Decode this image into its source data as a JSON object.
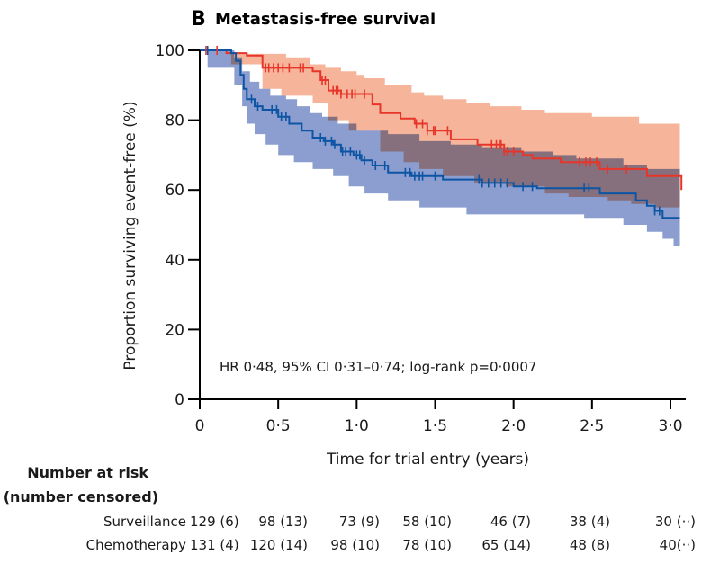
{
  "chart_data": {
    "type": "line",
    "panel_letter": "B",
    "title": "Metastasis-free survival",
    "xlabel": "Time for trial entry (years)",
    "ylabel": "Proportion surviving event-free (%)",
    "xlim": [
      0,
      3.0
    ],
    "ylim": [
      0,
      100
    ],
    "xticks": [
      0,
      0.5,
      1.0,
      1.5,
      2.0,
      2.5,
      3.0
    ],
    "xtick_labels": [
      "0",
      "0·5",
      "1·0",
      "1·5",
      "2·0",
      "2·5",
      "3·0"
    ],
    "yticks": [
      0,
      20,
      40,
      60,
      80,
      100
    ],
    "ytick_labels": [
      "0",
      "20",
      "40",
      "60",
      "80",
      "100"
    ],
    "grid": false,
    "annotation": "HR 0·48, 95% CI 0·31–0·74; log-rank p=0·0007",
    "series": [
      {
        "name": "Surveillance",
        "color": "#e8352a",
        "band_color": "#f4a07e",
        "steps": [
          [
            0,
            100
          ],
          [
            0.17,
            99.2
          ],
          [
            0.3,
            98.5
          ],
          [
            0.4,
            95
          ],
          [
            0.72,
            94
          ],
          [
            0.77,
            91.5
          ],
          [
            0.82,
            88.5
          ],
          [
            0.9,
            87.5
          ],
          [
            1.1,
            84.5
          ],
          [
            1.15,
            82
          ],
          [
            1.28,
            80.5
          ],
          [
            1.37,
            79
          ],
          [
            1.45,
            77
          ],
          [
            1.6,
            74.5
          ],
          [
            1.77,
            73
          ],
          [
            1.94,
            71
          ],
          [
            2.06,
            70
          ],
          [
            2.12,
            69
          ],
          [
            2.3,
            68
          ],
          [
            2.55,
            66
          ],
          [
            2.85,
            64
          ],
          [
            3.07,
            60
          ]
        ],
        "ci_upper": [
          [
            0,
            100
          ],
          [
            0.2,
            99
          ],
          [
            0.4,
            99
          ],
          [
            0.55,
            98
          ],
          [
            0.7,
            96
          ],
          [
            0.8,
            95
          ],
          [
            0.9,
            94
          ],
          [
            1.0,
            93
          ],
          [
            1.05,
            92
          ],
          [
            1.18,
            90
          ],
          [
            1.35,
            88
          ],
          [
            1.43,
            87
          ],
          [
            1.55,
            86
          ],
          [
            1.7,
            85
          ],
          [
            1.85,
            84
          ],
          [
            2.05,
            83
          ],
          [
            2.2,
            82
          ],
          [
            2.5,
            81
          ],
          [
            2.8,
            79
          ],
          [
            3.06,
            79
          ]
        ],
        "ci_lower": [
          [
            0,
            100
          ],
          [
            0.2,
            96
          ],
          [
            0.4,
            89
          ],
          [
            0.52,
            87
          ],
          [
            0.72,
            85
          ],
          [
            0.82,
            80
          ],
          [
            0.95,
            77
          ],
          [
            1.15,
            71
          ],
          [
            1.3,
            68
          ],
          [
            1.4,
            66
          ],
          [
            1.55,
            64
          ],
          [
            1.75,
            62
          ],
          [
            1.95,
            61
          ],
          [
            2.2,
            59
          ],
          [
            2.35,
            58
          ],
          [
            2.6,
            57
          ],
          [
            2.75,
            56
          ],
          [
            2.9,
            55
          ],
          [
            3.06,
            54
          ]
        ],
        "censor_times": [
          0.04,
          0.11,
          0.42,
          0.44,
          0.47,
          0.5,
          0.53,
          0.57,
          0.64,
          0.66,
          0.78,
          0.8,
          0.85,
          0.87,
          0.88,
          0.9,
          0.94,
          0.97,
          0.99,
          1.05,
          1.38,
          1.42,
          1.45,
          1.49,
          1.5,
          1.58,
          1.86,
          1.89,
          1.91,
          1.92,
          1.94,
          1.96,
          2.0,
          2.42,
          2.46,
          2.49,
          2.53,
          2.6,
          2.72
        ]
      },
      {
        "name": "Chemotherapy",
        "color": "#0d55a4",
        "band_color": "#8b9ecf",
        "steps": [
          [
            0,
            100
          ],
          [
            0.2,
            99.2
          ],
          [
            0.23,
            97
          ],
          [
            0.26,
            93
          ],
          [
            0.28,
            89
          ],
          [
            0.3,
            86
          ],
          [
            0.35,
            84
          ],
          [
            0.4,
            83
          ],
          [
            0.5,
            81
          ],
          [
            0.57,
            79
          ],
          [
            0.65,
            77
          ],
          [
            0.72,
            75
          ],
          [
            0.79,
            74
          ],
          [
            0.85,
            73
          ],
          [
            0.9,
            71
          ],
          [
            0.98,
            70
          ],
          [
            1.03,
            68.5
          ],
          [
            1.1,
            67
          ],
          [
            1.2,
            65
          ],
          [
            1.35,
            64
          ],
          [
            1.55,
            63
          ],
          [
            1.8,
            62
          ],
          [
            2.0,
            61
          ],
          [
            2.15,
            60.5
          ],
          [
            2.55,
            59
          ],
          [
            2.78,
            57
          ],
          [
            2.85,
            55.5
          ],
          [
            2.9,
            54
          ],
          [
            2.95,
            52
          ],
          [
            3.06,
            52
          ]
        ],
        "ci_upper": [
          [
            0,
            100
          ],
          [
            0.05,
            100
          ],
          [
            0.22,
            98
          ],
          [
            0.27,
            94
          ],
          [
            0.32,
            91
          ],
          [
            0.38,
            89
          ],
          [
            0.45,
            87
          ],
          [
            0.55,
            86
          ],
          [
            0.62,
            84
          ],
          [
            0.7,
            82
          ],
          [
            0.78,
            81
          ],
          [
            0.88,
            79
          ],
          [
            1.0,
            77
          ],
          [
            1.2,
            76
          ],
          [
            1.4,
            74
          ],
          [
            1.6,
            73
          ],
          [
            1.8,
            72
          ],
          [
            2.05,
            71
          ],
          [
            2.25,
            70
          ],
          [
            2.4,
            69
          ],
          [
            2.7,
            67
          ],
          [
            2.85,
            66
          ],
          [
            3.06,
            66
          ]
        ],
        "ci_lower": [
          [
            0,
            100
          ],
          [
            0.05,
            95
          ],
          [
            0.22,
            90
          ],
          [
            0.27,
            84
          ],
          [
            0.3,
            79
          ],
          [
            0.35,
            76
          ],
          [
            0.42,
            73
          ],
          [
            0.5,
            70
          ],
          [
            0.6,
            68
          ],
          [
            0.72,
            66
          ],
          [
            0.85,
            64
          ],
          [
            0.95,
            61
          ],
          [
            1.05,
            59
          ],
          [
            1.2,
            57
          ],
          [
            1.4,
            55
          ],
          [
            1.7,
            53
          ],
          [
            2.0,
            53
          ],
          [
            2.45,
            52
          ],
          [
            2.7,
            50
          ],
          [
            2.85,
            48
          ],
          [
            2.95,
            46
          ],
          [
            3.02,
            44
          ],
          [
            3.06,
            44
          ]
        ],
        "censor_times": [
          0.05,
          0.33,
          0.37,
          0.46,
          0.49,
          0.52,
          0.55,
          0.77,
          0.8,
          0.84,
          0.86,
          0.91,
          0.93,
          0.96,
          1.0,
          1.02,
          1.05,
          1.12,
          1.18,
          1.31,
          1.34,
          1.37,
          1.4,
          1.42,
          1.5,
          1.78,
          1.8,
          1.84,
          1.88,
          1.92,
          1.96,
          2.06,
          2.12,
          2.45,
          2.48,
          2.9,
          2.93
        ]
      }
    ],
    "risk_table": {
      "heading_line1": "Number at risk",
      "heading_line2": "(number censored)",
      "rows": [
        {
          "label": "Surveillance",
          "values": [
            "129 (6)",
            "98 (13)",
            "73 (9)",
            "58 (10)",
            "46 (7)",
            "38 (4)",
            "30 (··)"
          ]
        },
        {
          "label": "Chemotherapy",
          "values": [
            "131 (4)",
            "120 (14)",
            "98 (10)",
            "78 (10)",
            "65 (14)",
            "48 (8)",
            "40(··)"
          ]
        }
      ]
    }
  }
}
